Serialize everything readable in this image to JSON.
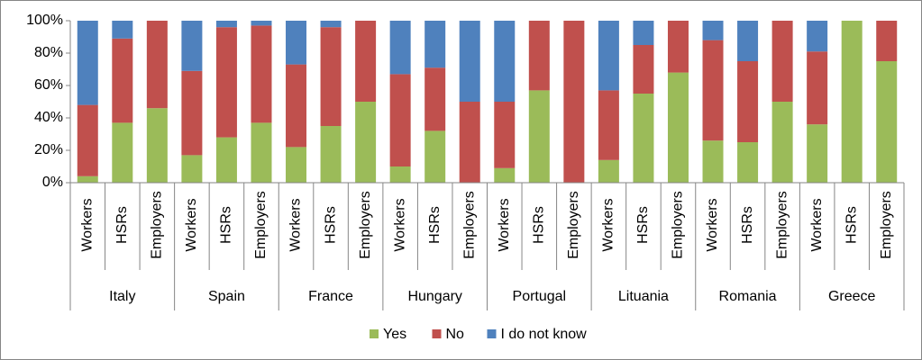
{
  "chart_data": {
    "type": "bar",
    "stacked": true,
    "groups": [
      {
        "name": "Italy",
        "categories": [
          "Workers",
          "HSRs",
          "Employers"
        ]
      },
      {
        "name": "Spain",
        "categories": [
          "Workers",
          "HSRs",
          "Employers"
        ]
      },
      {
        "name": "France",
        "categories": [
          "Workers",
          "HSRs",
          "Employers"
        ]
      },
      {
        "name": "Hungary",
        "categories": [
          "Workers",
          "HSRs",
          "Employers"
        ]
      },
      {
        "name": "Portugal",
        "categories": [
          "Workers",
          "HSRs",
          "Employers"
        ]
      },
      {
        "name": "Lituania",
        "categories": [
          "Workers",
          "HSRs",
          "Employers"
        ]
      },
      {
        "name": "Romania",
        "categories": [
          "Workers",
          "HSRs",
          "Employers"
        ]
      },
      {
        "name": "Greece",
        "categories": [
          "Workers",
          "HSRs",
          "Employers"
        ]
      }
    ],
    "series": [
      {
        "name": "Yes",
        "color": "#9bbb59",
        "values": [
          4,
          37,
          46,
          17,
          28,
          37,
          22,
          35,
          50,
          10,
          32,
          0,
          9,
          57,
          0,
          14,
          55,
          68,
          26,
          25,
          50,
          36,
          100,
          75
        ]
      },
      {
        "name": "No",
        "color": "#c0504d",
        "values": [
          44,
          52,
          54,
          52,
          68,
          60,
          51,
          61,
          50,
          57,
          39,
          50,
          41,
          43,
          100,
          43,
          30,
          32,
          62,
          50,
          50,
          45,
          0,
          25
        ]
      },
      {
        "name": "I do not know",
        "color": "#4f81bd",
        "values": [
          52,
          11,
          0,
          31,
          4,
          3,
          27,
          4,
          0,
          33,
          29,
          50,
          50,
          0,
          0,
          43,
          15,
          0,
          12,
          25,
          0,
          19,
          0,
          0
        ]
      }
    ],
    "ylim": [
      0,
      100
    ],
    "yticks": [
      {
        "value": 0,
        "label": "0%"
      },
      {
        "value": 20,
        "label": "20%"
      },
      {
        "value": 40,
        "label": "40%"
      },
      {
        "value": 60,
        "label": "60%"
      },
      {
        "value": 80,
        "label": "80%"
      },
      {
        "value": 100,
        "label": "100%"
      }
    ],
    "grid": false,
    "legend": "bottom"
  }
}
